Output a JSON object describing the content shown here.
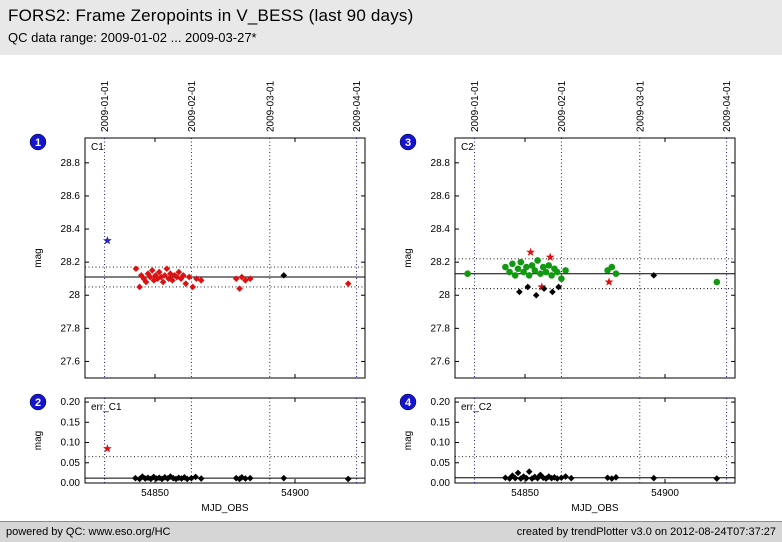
{
  "header": {
    "title": "FORS2: Frame Zeropoints in V_BESS (last 90 days)",
    "subtitle": "QC data range: 2009-01-02 ... 2009-03-27*"
  },
  "footer": {
    "left": "powered by QC: www.eso.org/HC",
    "right": "created by trendPlotter v3.0 on 2012-08-24T07:37:27"
  },
  "colors": {
    "badge": "#1414cc",
    "badge_text": "#ffffff",
    "month_line": "#00008b",
    "mean_line": "#000000",
    "threshold_line": "#000000",
    "red": "#dd1111",
    "green": "#119911",
    "blue": "#2222cc",
    "black": "#000000"
  },
  "chart_data": [
    {
      "type": "scatter",
      "id": "C1",
      "badge": "1",
      "label": "C1",
      "ylabel": "mag",
      "xlabel": "",
      "x_range": [
        54825,
        54925
      ],
      "y_range": [
        27.5,
        28.95
      ],
      "y_ticks": [
        "27.6",
        "27.8",
        "28",
        "28.2",
        "28.4",
        "28.6",
        "28.8"
      ],
      "y_tick_vals": [
        27.6,
        27.8,
        28.0,
        28.2,
        28.4,
        28.6,
        28.8
      ],
      "x_ticks": [
        "54850",
        "54900"
      ],
      "x_tick_vals": [
        54850,
        54900
      ],
      "show_x_tick_labels": false,
      "show_month_labels": true,
      "month_lines": [
        {
          "mjd": 54832,
          "label": "2009-01-01"
        },
        {
          "mjd": 54863,
          "label": "2009-02-01"
        },
        {
          "mjd": 54891,
          "label": "2009-03-01"
        },
        {
          "mjd": 54922,
          "label": "2009-04-01"
        }
      ],
      "mean_line": 28.11,
      "threshold_lines": [
        28.17,
        28.05
      ],
      "series": [
        {
          "name": "outlier-zeropoint",
          "marker": "star",
          "color": "#2222cc",
          "points": [
            [
              54833,
              28.33
            ]
          ]
        },
        {
          "name": "zeropoints-flagged",
          "marker": "diamond",
          "color": "#dd1111",
          "points": [
            [
              54843.2,
              28.16
            ],
            [
              54844.5,
              28.05
            ],
            [
              54845.1,
              28.12
            ],
            [
              54846.0,
              28.1
            ],
            [
              54846.8,
              28.08
            ],
            [
              54847.5,
              28.13
            ],
            [
              54848.3,
              28.11
            ],
            [
              54849.0,
              28.15
            ],
            [
              54849.6,
              28.09
            ],
            [
              54850.2,
              28.12
            ],
            [
              54850.9,
              28.1
            ],
            [
              54851.5,
              28.14
            ],
            [
              54852.2,
              28.11
            ],
            [
              54852.9,
              28.08
            ],
            [
              54853.5,
              28.12
            ],
            [
              54854.2,
              28.16
            ],
            [
              54854.9,
              28.1
            ],
            [
              54855.5,
              28.13
            ],
            [
              54856.2,
              28.09
            ],
            [
              54857.0,
              28.12
            ],
            [
              54857.8,
              28.11
            ],
            [
              54858.5,
              28.14
            ],
            [
              54859.3,
              28.1
            ],
            [
              54860.1,
              28.12
            ],
            [
              54861.0,
              28.07
            ],
            [
              54862.2,
              28.11
            ],
            [
              54863.5,
              28.05
            ],
            [
              54864.8,
              28.1
            ],
            [
              54866.5,
              28.09
            ],
            [
              54879.0,
              28.1
            ],
            [
              54880.2,
              28.04
            ],
            [
              54881.0,
              28.11
            ],
            [
              54882.3,
              28.09
            ],
            [
              54884.0,
              28.1
            ],
            [
              54919.0,
              28.07
            ]
          ]
        },
        {
          "name": "zeropoints-certified",
          "marker": "diamond",
          "color": "#000000",
          "points": [
            [
              54896.0,
              28.12
            ]
          ]
        }
      ]
    },
    {
      "type": "scatter",
      "id": "C2",
      "badge": "3",
      "label": "C2",
      "ylabel": "mag",
      "xlabel": "",
      "x_range": [
        54825,
        54925
      ],
      "y_range": [
        27.5,
        28.95
      ],
      "y_ticks": [
        "27.6",
        "27.8",
        "28",
        "28.2",
        "28.4",
        "28.6",
        "28.8"
      ],
      "y_tick_vals": [
        27.6,
        27.8,
        28.0,
        28.2,
        28.4,
        28.6,
        28.8
      ],
      "x_ticks": [
        "54850",
        "54900"
      ],
      "x_tick_vals": [
        54850,
        54900
      ],
      "show_x_tick_labels": false,
      "show_month_labels": true,
      "month_lines": [
        {
          "mjd": 54832,
          "label": "2009-01-01"
        },
        {
          "mjd": 54863,
          "label": "2009-02-01"
        },
        {
          "mjd": 54891,
          "label": "2009-03-01"
        },
        {
          "mjd": 54922,
          "label": "2009-04-01"
        }
      ],
      "mean_line": 28.13,
      "threshold_lines": [
        28.22,
        28.04
      ],
      "series": [
        {
          "name": "zeropoints-ok",
          "marker": "circle",
          "color": "#119911",
          "points": [
            [
              54829.5,
              28.13
            ],
            [
              54843.0,
              28.17
            ],
            [
              54844.5,
              28.14
            ],
            [
              54845.5,
              28.19
            ],
            [
              54846.5,
              28.12
            ],
            [
              54847.5,
              28.16
            ],
            [
              54848.5,
              28.2
            ],
            [
              54849.5,
              28.14
            ],
            [
              54850.5,
              28.17
            ],
            [
              54851.5,
              28.12
            ],
            [
              54852.5,
              28.18
            ],
            [
              54853.5,
              28.15
            ],
            [
              54854.5,
              28.21
            ],
            [
              54855.5,
              28.13
            ],
            [
              54856.5,
              28.17
            ],
            [
              54857.5,
              28.14
            ],
            [
              54858.5,
              28.18
            ],
            [
              54859.5,
              28.12
            ],
            [
              54860.5,
              28.16
            ],
            [
              54861.5,
              28.14
            ],
            [
              54863.0,
              28.1
            ],
            [
              54864.5,
              28.15
            ],
            [
              54879.5,
              28.15
            ],
            [
              54881.0,
              28.17
            ],
            [
              54882.5,
              28.13
            ],
            [
              54918.5,
              28.08
            ]
          ]
        },
        {
          "name": "zeropoints-flagged",
          "marker": "star",
          "color": "#dd1111",
          "points": [
            [
              54852.0,
              28.26
            ],
            [
              54856.0,
              28.05
            ],
            [
              54859.0,
              28.23
            ],
            [
              54880.0,
              28.08
            ]
          ]
        },
        {
          "name": "zeropoints-certified",
          "marker": "diamond",
          "color": "#000000",
          "points": [
            [
              54848.0,
              28.02
            ],
            [
              54851.0,
              28.05
            ],
            [
              54854.0,
              28.0
            ],
            [
              54856.8,
              28.04
            ],
            [
              54859.8,
              28.02
            ],
            [
              54862.0,
              28.05
            ],
            [
              54896.0,
              28.12
            ]
          ]
        }
      ]
    },
    {
      "type": "scatter",
      "id": "err_C1",
      "badge": "2",
      "label": "err_C1",
      "ylabel": "mag",
      "xlabel": "MJD_OBS",
      "x_range": [
        54825,
        54925
      ],
      "y_range": [
        0,
        0.21
      ],
      "y_ticks": [
        "0.00",
        "0.05",
        "0.10",
        "0.15",
        "0.20"
      ],
      "y_tick_vals": [
        0.0,
        0.05,
        0.1,
        0.15,
        0.2
      ],
      "x_ticks": [
        "54850",
        "54900"
      ],
      "x_tick_vals": [
        54850,
        54900
      ],
      "show_x_tick_labels": true,
      "show_month_labels": false,
      "month_lines": [
        {
          "mjd": 54832,
          "label": "2009-01-01"
        },
        {
          "mjd": 54863,
          "label": "2009-02-01"
        },
        {
          "mjd": 54891,
          "label": "2009-03-01"
        },
        {
          "mjd": 54922,
          "label": "2009-04-01"
        }
      ],
      "mean_line": 0.012,
      "threshold_lines": [
        0.065
      ],
      "series": [
        {
          "name": "error-outlier",
          "marker": "star",
          "color": "#dd1111",
          "points": [
            [
              54833,
              0.085
            ]
          ]
        },
        {
          "name": "errors",
          "marker": "diamond",
          "color": "#000000",
          "points": [
            [
              54843.0,
              0.012
            ],
            [
              54844.5,
              0.01
            ],
            [
              54845.5,
              0.016
            ],
            [
              54846.5,
              0.011
            ],
            [
              54847.5,
              0.013
            ],
            [
              54848.5,
              0.01
            ],
            [
              54849.5,
              0.015
            ],
            [
              54850.5,
              0.011
            ],
            [
              54851.5,
              0.013
            ],
            [
              54852.5,
              0.01
            ],
            [
              54853.5,
              0.014
            ],
            [
              54854.5,
              0.011
            ],
            [
              54855.5,
              0.016
            ],
            [
              54856.5,
              0.012
            ],
            [
              54857.5,
              0.01
            ],
            [
              54858.5,
              0.013
            ],
            [
              54859.5,
              0.011
            ],
            [
              54860.5,
              0.014
            ],
            [
              54861.5,
              0.01
            ],
            [
              54863.0,
              0.012
            ],
            [
              54864.5,
              0.015
            ],
            [
              54866.5,
              0.011
            ],
            [
              54879.0,
              0.012
            ],
            [
              54880.2,
              0.01
            ],
            [
              54881.0,
              0.014
            ],
            [
              54882.3,
              0.011
            ],
            [
              54884.0,
              0.012
            ],
            [
              54896.0,
              0.012
            ],
            [
              54919.0,
              0.01
            ]
          ]
        }
      ]
    },
    {
      "type": "scatter",
      "id": "err_C2",
      "badge": "4",
      "label": "err_C2",
      "ylabel": "mag",
      "xlabel": "MJD_OBS",
      "x_range": [
        54825,
        54925
      ],
      "y_range": [
        0,
        0.21
      ],
      "y_ticks": [
        "0.00",
        "0.05",
        "0.10",
        "0.15",
        "0.20"
      ],
      "y_tick_vals": [
        0.0,
        0.05,
        0.1,
        0.15,
        0.2
      ],
      "x_ticks": [
        "54850",
        "54900"
      ],
      "x_tick_vals": [
        54850,
        54900
      ],
      "show_x_tick_labels": true,
      "show_month_labels": false,
      "month_lines": [
        {
          "mjd": 54832,
          "label": "2009-01-01"
        },
        {
          "mjd": 54863,
          "label": "2009-02-01"
        },
        {
          "mjd": 54891,
          "label": "2009-03-01"
        },
        {
          "mjd": 54922,
          "label": "2009-04-01"
        }
      ],
      "mean_line": 0.013,
      "threshold_lines": [
        0.065
      ],
      "series": [
        {
          "name": "errors",
          "marker": "diamond",
          "color": "#000000",
          "points": [
            [
              54843.0,
              0.013
            ],
            [
              54844.5,
              0.011
            ],
            [
              54845.5,
              0.018
            ],
            [
              54846.5,
              0.012
            ],
            [
              54847.5,
              0.025
            ],
            [
              54848.5,
              0.011
            ],
            [
              54849.5,
              0.016
            ],
            [
              54850.5,
              0.012
            ],
            [
              54851.5,
              0.028
            ],
            [
              54852.5,
              0.011
            ],
            [
              54853.5,
              0.015
            ],
            [
              54854.5,
              0.012
            ],
            [
              54855.5,
              0.02
            ],
            [
              54856.5,
              0.013
            ],
            [
              54857.5,
              0.011
            ],
            [
              54858.5,
              0.016
            ],
            [
              54859.5,
              0.012
            ],
            [
              54860.5,
              0.014
            ],
            [
              54861.5,
              0.011
            ],
            [
              54863.0,
              0.013
            ],
            [
              54864.5,
              0.016
            ],
            [
              54866.5,
              0.012
            ],
            [
              54879.5,
              0.013
            ],
            [
              54881.0,
              0.011
            ],
            [
              54882.5,
              0.014
            ],
            [
              54896.0,
              0.012
            ],
            [
              54918.5,
              0.011
            ]
          ]
        }
      ]
    }
  ]
}
